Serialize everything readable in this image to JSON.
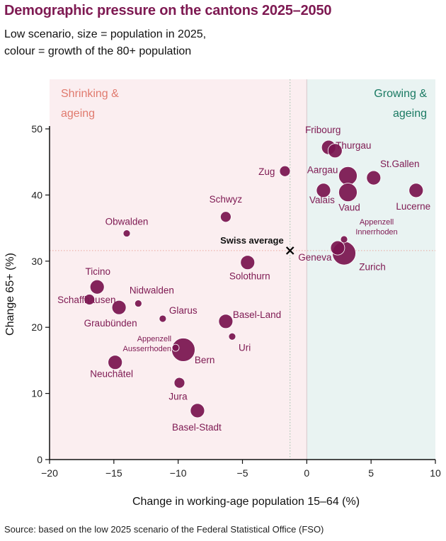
{
  "title": "Demographic pressure on the cantons 2025–2050",
  "subtitle_line1": "Low scenario, size = population in 2025,",
  "subtitle_line2": "colour = growth of the 80+ population",
  "source": "Source: based on the low 2025 scenario of the Federal Statistical Office (FSO)",
  "colors": {
    "bubble": "#7a1450",
    "left_region": "#fbeef0",
    "right_region": "#e9f3f2",
    "left_text": "#e07a6e",
    "right_text": "#1a7a63"
  },
  "chart_data": {
    "type": "scatter",
    "xlabel": "Change in working-age population 15–64 (%)",
    "ylabel": "Change 65+ (%)",
    "xlim": [
      -20,
      10
    ],
    "ylim": [
      0,
      50
    ],
    "xticks": [
      -20,
      -15,
      -10,
      -5,
      0,
      5,
      10
    ],
    "yticks": [
      0,
      10,
      20,
      30,
      40,
      50
    ],
    "grid": false,
    "regions": [
      {
        "label_line1": "Shrinking &",
        "label_line2": "ageing",
        "x_range": [
          -20,
          0
        ]
      },
      {
        "label_line1": "Growing &",
        "label_line2": "ageing",
        "x_range": [
          0,
          10
        ]
      }
    ],
    "average": {
      "label": "Swiss average",
      "x": -1.3,
      "y": 31.6
    },
    "points": [
      {
        "name": "Fribourg",
        "x": 1.7,
        "y": 47.2,
        "size": "medium"
      },
      {
        "name": "Thurgau",
        "x": 2.2,
        "y": 46.7,
        "size": "medium"
      },
      {
        "name": "Zug",
        "x": -1.7,
        "y": 43.6,
        "size": "small"
      },
      {
        "name": "Aargau",
        "x": 3.2,
        "y": 42.9,
        "size": "large"
      },
      {
        "name": "St.Gallen",
        "x": 5.2,
        "y": 42.6,
        "size": "medium"
      },
      {
        "name": "Valais",
        "x": 1.3,
        "y": 40.7,
        "size": "medium"
      },
      {
        "name": "Vaud",
        "x": 3.2,
        "y": 40.4,
        "size": "large"
      },
      {
        "name": "Lucerne",
        "x": 8.5,
        "y": 40.7,
        "size": "medium"
      },
      {
        "name": "Schwyz",
        "x": -6.3,
        "y": 36.7,
        "size": "small"
      },
      {
        "name": "Obwalden",
        "x": -14,
        "y": 34.2,
        "size": "tiny"
      },
      {
        "name": "Appenzell Innerrhoden",
        "label_line1": "Appenzell",
        "label_line2": "Innerrhoden",
        "x": 2.9,
        "y": 33.3,
        "size": "tiny"
      },
      {
        "name": "Geneva",
        "x": 2.4,
        "y": 32.0,
        "size": "medium"
      },
      {
        "name": "Zurich",
        "x": 2.9,
        "y": 31.2,
        "size": "xlarge"
      },
      {
        "name": "Solothurn",
        "x": -4.6,
        "y": 29.8,
        "size": "medium"
      },
      {
        "name": "Ticino",
        "x": -16.3,
        "y": 26.1,
        "size": "medium"
      },
      {
        "name": "Schaffhausen",
        "x": -16.9,
        "y": 24.2,
        "size": "small"
      },
      {
        "name": "Nidwalden",
        "x": -13.1,
        "y": 23.6,
        "size": "tiny"
      },
      {
        "name": "Graubünden",
        "x": -14.6,
        "y": 23.0,
        "size": "medium"
      },
      {
        "name": "Glarus",
        "x": -11.2,
        "y": 21.3,
        "size": "tiny"
      },
      {
        "name": "Basel-Land",
        "x": -6.3,
        "y": 20.9,
        "size": "medium"
      },
      {
        "name": "Uri",
        "x": -5.8,
        "y": 18.6,
        "size": "tiny"
      },
      {
        "name": "Appenzell Ausserrhoden",
        "label_line1": "Appenzell",
        "label_line2": "Ausserrhoden",
        "x": -10.2,
        "y": 16.9,
        "size": "tiny"
      },
      {
        "name": "Bern",
        "x": -9.6,
        "y": 16.6,
        "size": "xlarge"
      },
      {
        "name": "Neuchâtel",
        "x": -14.9,
        "y": 14.7,
        "size": "medium"
      },
      {
        "name": "Jura",
        "x": -9.9,
        "y": 11.6,
        "size": "small"
      },
      {
        "name": "Basel-Stadt",
        "x": -8.5,
        "y": 7.4,
        "size": "medium"
      }
    ]
  }
}
